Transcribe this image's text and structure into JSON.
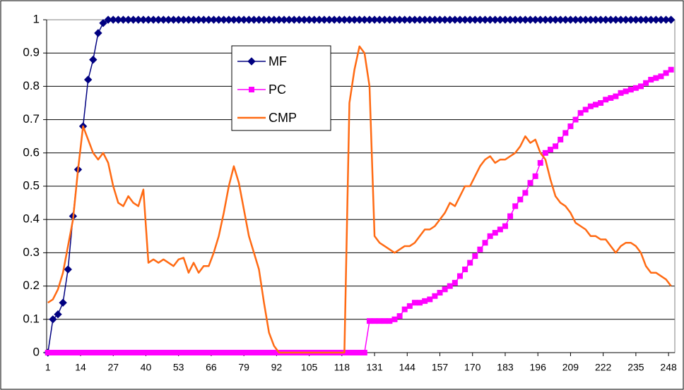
{
  "chart_data": {
    "type": "line",
    "x": [
      1,
      3,
      5,
      7,
      9,
      11,
      13,
      15,
      17,
      19,
      21,
      23,
      25,
      27,
      29,
      31,
      33,
      35,
      37,
      39,
      41,
      43,
      45,
      47,
      49,
      51,
      53,
      55,
      57,
      59,
      61,
      63,
      65,
      67,
      69,
      71,
      73,
      75,
      77,
      79,
      81,
      83,
      85,
      87,
      89,
      91,
      93,
      95,
      97,
      99,
      101,
      103,
      105,
      107,
      109,
      111,
      113,
      115,
      117,
      119,
      121,
      123,
      125,
      127,
      129,
      131,
      133,
      135,
      137,
      139,
      141,
      143,
      145,
      147,
      149,
      151,
      153,
      155,
      157,
      159,
      161,
      163,
      165,
      167,
      169,
      171,
      173,
      175,
      177,
      179,
      181,
      183,
      185,
      187,
      189,
      191,
      193,
      195,
      197,
      199,
      201,
      203,
      205,
      207,
      209,
      211,
      213,
      215,
      217,
      219,
      221,
      223,
      225,
      227,
      229,
      231,
      233,
      235,
      237,
      239,
      241,
      243,
      245,
      247,
      249
    ],
    "series": [
      {
        "name": "MF",
        "color": "#000080",
        "marker": "diamond",
        "values": [
          0,
          0.1,
          0.115,
          0.15,
          0.25,
          0.41,
          0.55,
          0.68,
          0.82,
          0.88,
          0.96,
          0.99,
          1,
          1,
          1,
          1,
          1,
          1,
          1,
          1,
          1,
          1,
          1,
          1,
          1,
          1,
          1,
          1,
          1,
          1,
          1,
          1,
          1,
          1,
          1,
          1,
          1,
          1,
          1,
          1,
          1,
          1,
          1,
          1,
          1,
          1,
          1,
          1,
          1,
          1,
          1,
          1,
          1,
          1,
          1,
          1,
          1,
          1,
          1,
          1,
          1,
          1,
          1,
          1,
          1,
          1,
          1,
          1,
          1,
          1,
          1,
          1,
          1,
          1,
          1,
          1,
          1,
          1,
          1,
          1,
          1,
          1,
          1,
          1,
          1,
          1,
          1,
          1,
          1,
          1,
          1,
          1,
          1,
          1,
          1,
          1,
          1,
          1,
          1,
          1,
          1,
          1,
          1,
          1,
          1,
          1,
          1,
          1,
          1,
          1,
          1,
          1,
          1,
          1,
          1,
          1,
          1,
          1,
          1,
          1,
          1,
          1,
          1,
          1,
          1
        ]
      },
      {
        "name": "PC",
        "color": "#ff00ff",
        "marker": "square",
        "values": [
          0,
          0,
          0,
          0,
          0,
          0,
          0,
          0,
          0,
          0,
          0,
          0,
          0,
          0,
          0,
          0,
          0,
          0,
          0,
          0,
          0,
          0,
          0,
          0,
          0,
          0,
          0,
          0,
          0,
          0,
          0,
          0,
          0,
          0,
          0,
          0,
          0,
          0,
          0,
          0,
          0,
          0,
          0,
          0,
          0,
          0,
          0,
          0,
          0,
          0,
          0,
          0,
          0,
          0,
          0,
          0,
          0,
          0,
          0,
          0,
          0,
          0,
          0,
          0,
          0.095,
          0.095,
          0.095,
          0.095,
          0.095,
          0.1,
          0.11,
          0.13,
          0.14,
          0.15,
          0.15,
          0.155,
          0.16,
          0.17,
          0.18,
          0.19,
          0.2,
          0.21,
          0.23,
          0.25,
          0.27,
          0.29,
          0.31,
          0.33,
          0.35,
          0.36,
          0.37,
          0.38,
          0.41,
          0.44,
          0.46,
          0.48,
          0.51,
          0.53,
          0.57,
          0.6,
          0.61,
          0.62,
          0.64,
          0.66,
          0.68,
          0.7,
          0.72,
          0.73,
          0.74,
          0.745,
          0.75,
          0.76,
          0.765,
          0.77,
          0.78,
          0.785,
          0.79,
          0.795,
          0.8,
          0.81,
          0.82,
          0.825,
          0.83,
          0.84,
          0.85
        ]
      },
      {
        "name": "CMP",
        "color": "#ff6a13",
        "marker": "none",
        "values": [
          0.15,
          0.16,
          0.19,
          0.24,
          0.32,
          0.4,
          0.55,
          0.68,
          0.64,
          0.6,
          0.58,
          0.6,
          0.57,
          0.5,
          0.45,
          0.44,
          0.47,
          0.45,
          0.44,
          0.49,
          0.27,
          0.28,
          0.27,
          0.28,
          0.27,
          0.26,
          0.28,
          0.285,
          0.24,
          0.27,
          0.24,
          0.26,
          0.26,
          0.3,
          0.35,
          0.42,
          0.5,
          0.56,
          0.51,
          0.43,
          0.35,
          0.3,
          0.25,
          0.15,
          0.06,
          0.02,
          0,
          0,
          0,
          0,
          0,
          0,
          0,
          0,
          0,
          0,
          0,
          0,
          0,
          0,
          0.75,
          0.85,
          0.92,
          0.9,
          0.8,
          0.35,
          0.33,
          0.32,
          0.31,
          0.3,
          0.31,
          0.32,
          0.32,
          0.33,
          0.35,
          0.37,
          0.37,
          0.38,
          0.4,
          0.42,
          0.45,
          0.44,
          0.47,
          0.5,
          0.5,
          0.53,
          0.56,
          0.58,
          0.59,
          0.57,
          0.58,
          0.58,
          0.59,
          0.6,
          0.62,
          0.65,
          0.63,
          0.64,
          0.6,
          0.58,
          0.52,
          0.47,
          0.45,
          0.44,
          0.42,
          0.39,
          0.38,
          0.37,
          0.35,
          0.35,
          0.34,
          0.34,
          0.32,
          0.3,
          0.32,
          0.33,
          0.33,
          0.32,
          0.3,
          0.26,
          0.24,
          0.24,
          0.23,
          0.22,
          0.2
        ]
      }
    ],
    "xlim": [
      0.5,
      250.5
    ],
    "xticks": [
      1,
      14,
      27,
      40,
      53,
      66,
      79,
      92,
      105,
      118,
      131,
      144,
      157,
      170,
      183,
      196,
      209,
      222,
      235,
      248
    ],
    "ylim": [
      0,
      1
    ],
    "yticks": [
      0,
      0.1,
      0.2,
      0.3,
      0.4,
      0.5,
      0.6,
      0.7,
      0.8,
      0.9,
      1
    ],
    "grid": true,
    "legend": "upper center"
  }
}
